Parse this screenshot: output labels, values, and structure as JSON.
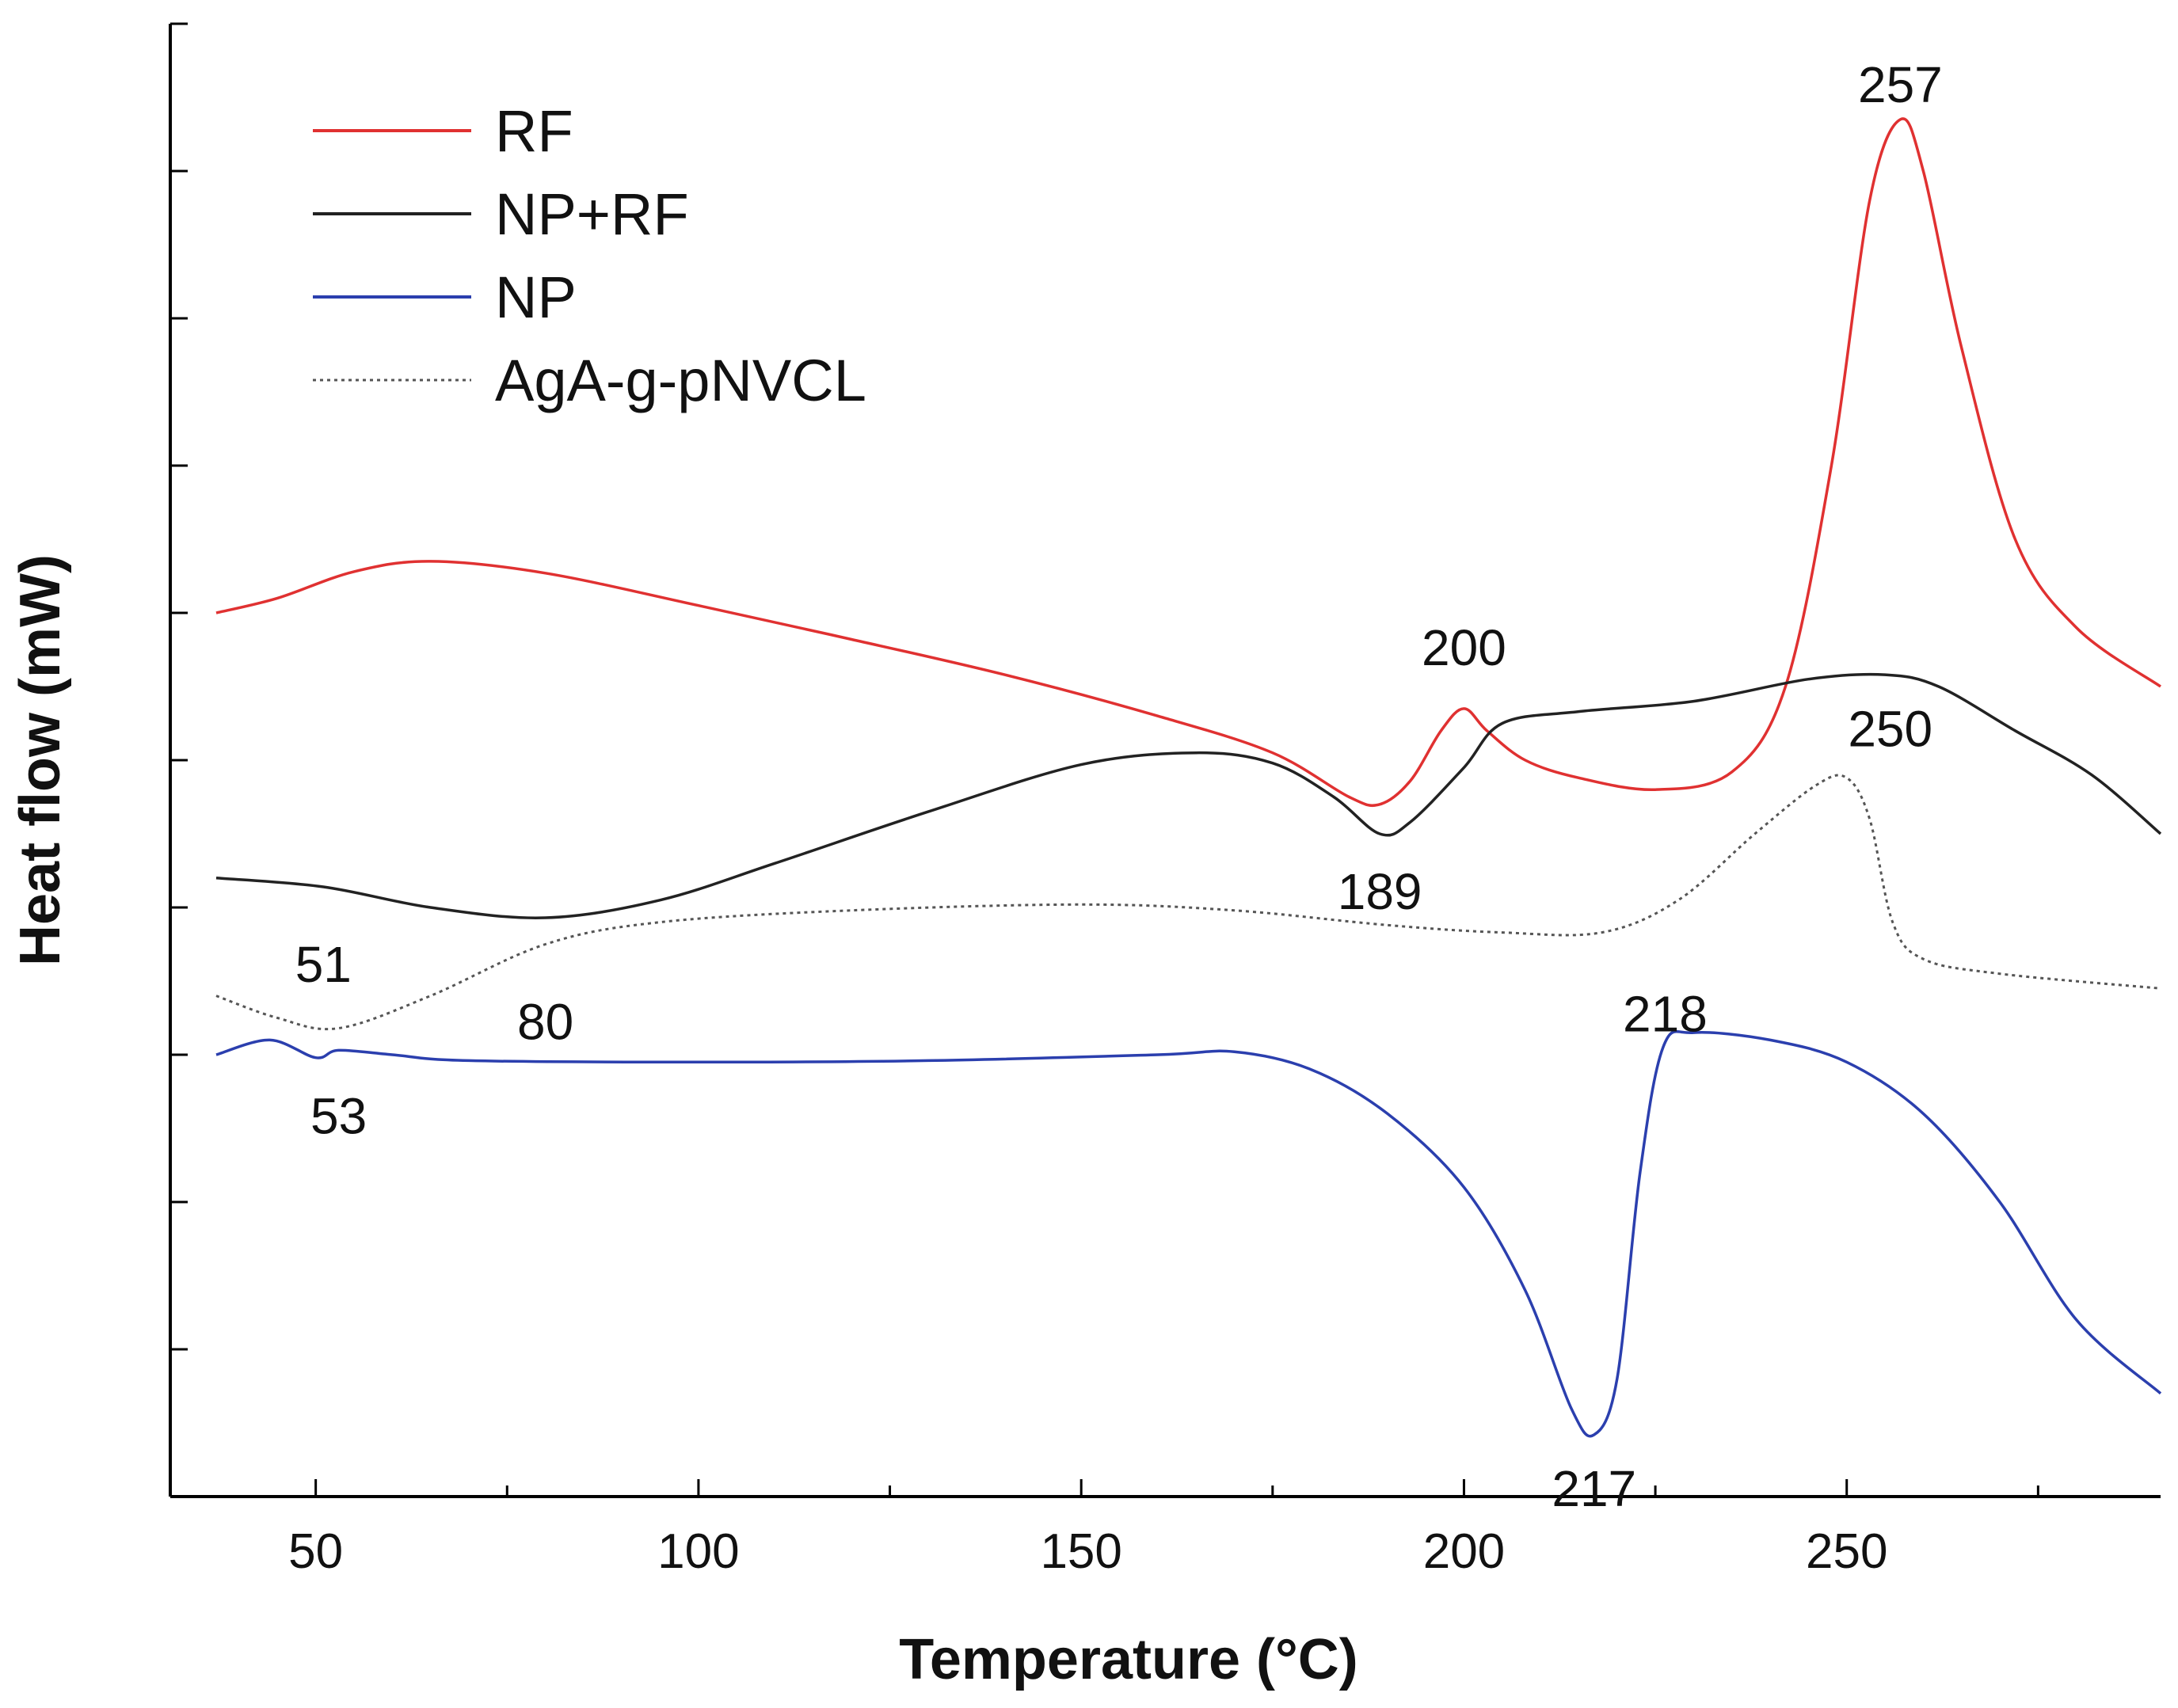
{
  "chart_data": {
    "type": "line",
    "title": "",
    "xlabel": "Temperature (°C)",
    "ylabel": "Heat flow (mW)",
    "xlim": [
      31,
      291
    ],
    "ylim": [
      0,
      10
    ],
    "x_ticks": [
      50,
      100,
      150,
      200,
      250
    ],
    "y_tick_labels_shown": false,
    "grid": false,
    "legend_position": "top-left",
    "series": [
      {
        "name": "RF",
        "color": "#e03131",
        "style": "solid",
        "points": [
          [
            37,
            6.0
          ],
          [
            45,
            6.1
          ],
          [
            55,
            6.28
          ],
          [
            65,
            6.35
          ],
          [
            80,
            6.27
          ],
          [
            100,
            6.05
          ],
          [
            120,
            5.82
          ],
          [
            140,
            5.58
          ],
          [
            160,
            5.3
          ],
          [
            175,
            5.05
          ],
          [
            185,
            4.75
          ],
          [
            189,
            4.7
          ],
          [
            193,
            4.86
          ],
          [
            197,
            5.2
          ],
          [
            200,
            5.35
          ],
          [
            203,
            5.2
          ],
          [
            208,
            5.0
          ],
          [
            215,
            4.88
          ],
          [
            225,
            4.8
          ],
          [
            235,
            4.92
          ],
          [
            242,
            5.5
          ],
          [
            248,
            7.0
          ],
          [
            253,
            8.8
          ],
          [
            257,
            9.35
          ],
          [
            260,
            9.0
          ],
          [
            265,
            7.8
          ],
          [
            272,
            6.5
          ],
          [
            280,
            5.9
          ],
          [
            291,
            5.5
          ]
        ]
      },
      {
        "name": "NP+RF",
        "color": "#222222",
        "style": "solid",
        "points": [
          [
            37,
            4.2
          ],
          [
            51,
            4.14
          ],
          [
            65,
            4.0
          ],
          [
            80,
            3.93
          ],
          [
            95,
            4.05
          ],
          [
            110,
            4.3
          ],
          [
            130,
            4.65
          ],
          [
            150,
            4.97
          ],
          [
            165,
            5.05
          ],
          [
            175,
            4.98
          ],
          [
            183,
            4.75
          ],
          [
            189,
            4.5
          ],
          [
            193,
            4.58
          ],
          [
            200,
            4.95
          ],
          [
            205,
            5.25
          ],
          [
            215,
            5.33
          ],
          [
            230,
            5.4
          ],
          [
            245,
            5.55
          ],
          [
            255,
            5.58
          ],
          [
            262,
            5.5
          ],
          [
            272,
            5.2
          ],
          [
            282,
            4.9
          ],
          [
            291,
            4.5
          ]
        ]
      },
      {
        "name": "NP",
        "color": "#2b3fae",
        "style": "solid",
        "points": [
          [
            37,
            3.0
          ],
          [
            44,
            3.1
          ],
          [
            50,
            2.98
          ],
          [
            53,
            3.03
          ],
          [
            60,
            3.0
          ],
          [
            70,
            2.96
          ],
          [
            100,
            2.95
          ],
          [
            130,
            2.96
          ],
          [
            160,
            3.0
          ],
          [
            170,
            3.02
          ],
          [
            180,
            2.9
          ],
          [
            190,
            2.6
          ],
          [
            200,
            2.1
          ],
          [
            208,
            1.4
          ],
          [
            214,
            0.6
          ],
          [
            217,
            0.42
          ],
          [
            220,
            0.8
          ],
          [
            223,
            2.2
          ],
          [
            226,
            3.05
          ],
          [
            230,
            3.15
          ],
          [
            240,
            3.1
          ],
          [
            250,
            2.95
          ],
          [
            260,
            2.6
          ],
          [
            270,
            2.0
          ],
          [
            280,
            1.2
          ],
          [
            291,
            0.7
          ]
        ]
      },
      {
        "name": "AgA-g-pNVCL",
        "color": "#555555",
        "style": "dotted",
        "points": [
          [
            37,
            3.4
          ],
          [
            45,
            3.25
          ],
          [
            53,
            3.18
          ],
          [
            65,
            3.4
          ],
          [
            80,
            3.75
          ],
          [
            95,
            3.9
          ],
          [
            120,
            3.98
          ],
          [
            150,
            4.02
          ],
          [
            170,
            3.98
          ],
          [
            190,
            3.88
          ],
          [
            205,
            3.83
          ],
          [
            218,
            3.83
          ],
          [
            228,
            4.05
          ],
          [
            238,
            4.5
          ],
          [
            246,
            4.83
          ],
          [
            250,
            4.88
          ],
          [
            253,
            4.6
          ],
          [
            256,
            3.9
          ],
          [
            260,
            3.65
          ],
          [
            270,
            3.55
          ],
          [
            291,
            3.45
          ]
        ]
      }
    ],
    "annotations": [
      {
        "text": "257",
        "x": 257,
        "y": 9.35
      },
      {
        "text": "200",
        "x": 200,
        "y": 5.35
      },
      {
        "text": "250",
        "x": 250,
        "y": 4.88
      },
      {
        "text": "189",
        "x": 189,
        "y": 4.5
      },
      {
        "text": "51",
        "x": 51,
        "y": 4.14
      },
      {
        "text": "80",
        "x": 80,
        "y": 3.75
      },
      {
        "text": "218",
        "x": 218,
        "y": 3.83
      },
      {
        "text": "53",
        "x": 53,
        "y": 3.03
      },
      {
        "text": "217",
        "x": 217,
        "y": 0.42
      }
    ]
  }
}
